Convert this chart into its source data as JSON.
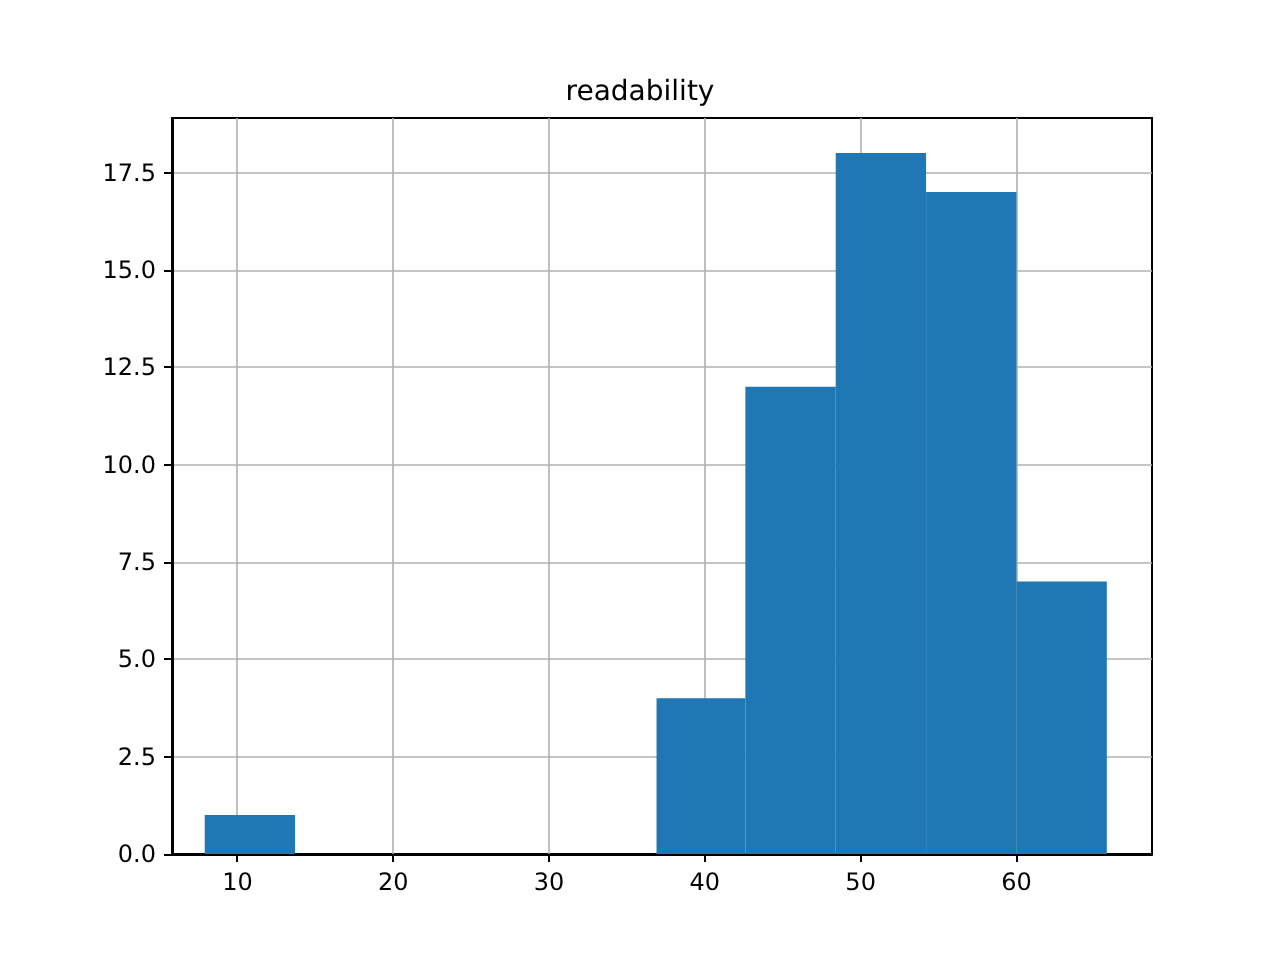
{
  "chart_data": {
    "type": "histogram",
    "title": "readability",
    "color": "#1f77b4",
    "bins": [
      7.9,
      13.7,
      36.9,
      42.6,
      48.4,
      54.2,
      60.0,
      65.8
    ],
    "values": [
      1,
      0,
      4,
      12,
      18,
      17,
      7
    ],
    "xlim": [
      5.8,
      68.7
    ],
    "xticks": [
      10,
      20,
      30,
      40,
      50,
      60
    ],
    "ylim": [
      0,
      18.9
    ],
    "yticks": [
      {
        "value": 0,
        "label": "0.0"
      },
      {
        "value": 2.5,
        "label": "2.5"
      },
      {
        "value": 5,
        "label": "5.0"
      },
      {
        "value": 7.5,
        "label": "7.5"
      },
      {
        "value": 10,
        "label": "10.0"
      },
      {
        "value": 12.5,
        "label": "12.5"
      },
      {
        "value": 15,
        "label": "15.0"
      },
      {
        "value": 17.5,
        "label": "17.5"
      }
    ],
    "grid": true
  }
}
